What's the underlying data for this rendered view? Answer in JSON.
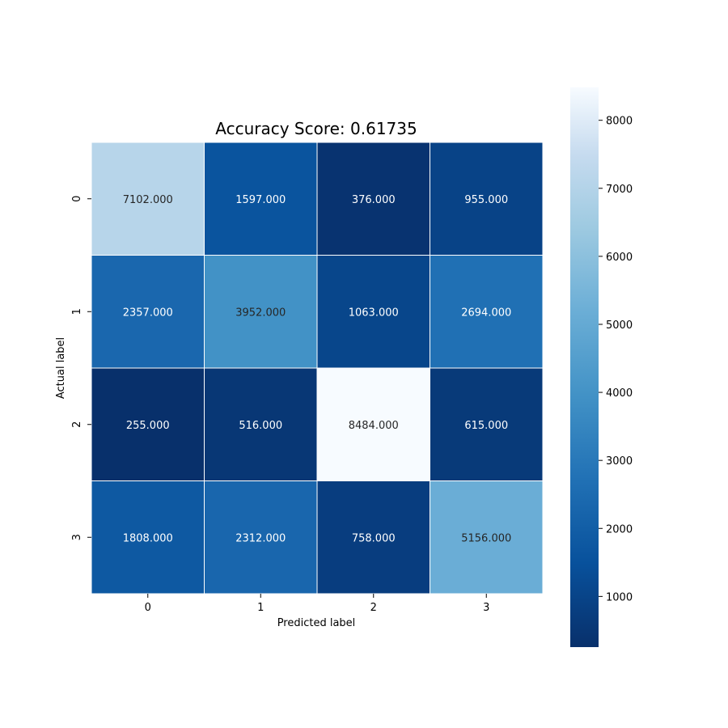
{
  "chart_data": {
    "type": "heatmap",
    "title": "Accuracy Score: 0.61735",
    "xlabel": "Predicted label",
    "ylabel": "Actual label",
    "x_ticks": [
      "0",
      "1",
      "2",
      "3"
    ],
    "y_ticks": [
      "0",
      "1",
      "2",
      "3"
    ],
    "values": [
      [
        7102,
        1597,
        376,
        955
      ],
      [
        2357,
        3952,
        1063,
        2694
      ],
      [
        255,
        516,
        8484,
        615
      ],
      [
        1808,
        2312,
        758,
        5156
      ]
    ],
    "annotation_format": "fixed-3",
    "colormap": "Blues_r",
    "colorbar": {
      "vmin": 255,
      "vmax": 8484,
      "ticks": [
        1000,
        2000,
        3000,
        4000,
        5000,
        6000,
        7000,
        8000
      ]
    },
    "grid": false,
    "cell_border_color": "#ffffff"
  }
}
